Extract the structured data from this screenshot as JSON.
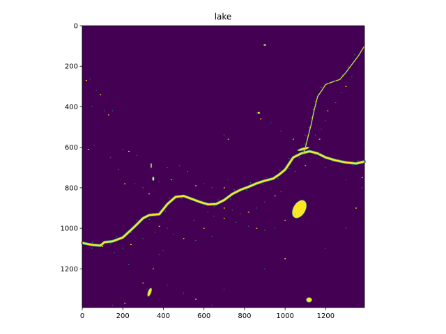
{
  "chart_data": {
    "type": "heatmap",
    "title": "lake",
    "xlabel": "",
    "ylabel": "",
    "xlim": [
      0,
      1391
    ],
    "ylim": [
      1391,
      0
    ],
    "x_ticks": [
      0,
      200,
      400,
      600,
      800,
      1000,
      1200
    ],
    "y_ticks": [
      0,
      200,
      400,
      600,
      800,
      1000,
      1200
    ],
    "colormap": "viridis",
    "colors": {
      "background": "#440154",
      "water": "#fde725",
      "edge": "#21918c"
    },
    "river_main": [
      [
        0,
        1072
      ],
      [
        50,
        1082
      ],
      [
        90,
        1085
      ],
      [
        110,
        1068
      ],
      [
        150,
        1064
      ],
      [
        200,
        1045
      ],
      [
        260,
        990
      ],
      [
        300,
        950
      ],
      [
        330,
        935
      ],
      [
        380,
        930
      ],
      [
        420,
        880
      ],
      [
        460,
        845
      ],
      [
        500,
        840
      ],
      [
        540,
        855
      ],
      [
        580,
        870
      ],
      [
        620,
        882
      ],
      [
        660,
        880
      ],
      [
        700,
        860
      ],
      [
        740,
        830
      ],
      [
        780,
        810
      ],
      [
        820,
        795
      ],
      [
        860,
        778
      ],
      [
        900,
        765
      ],
      [
        940,
        755
      ],
      [
        970,
        735
      ],
      [
        1000,
        710
      ],
      [
        1020,
        680
      ],
      [
        1040,
        650
      ],
      [
        1080,
        630
      ],
      [
        1120,
        620
      ],
      [
        1160,
        630
      ],
      [
        1200,
        650
      ],
      [
        1250,
        665
      ],
      [
        1300,
        675
      ],
      [
        1350,
        680
      ],
      [
        1391,
        670
      ]
    ],
    "river_branch": [
      [
        1391,
        100
      ],
      [
        1360,
        150
      ],
      [
        1330,
        190
      ],
      [
        1300,
        230
      ],
      [
        1270,
        265
      ],
      [
        1240,
        275
      ],
      [
        1200,
        290
      ],
      [
        1180,
        320
      ],
      [
        1160,
        350
      ],
      [
        1150,
        390
      ],
      [
        1140,
        430
      ],
      [
        1130,
        480
      ],
      [
        1120,
        520
      ],
      [
        1110,
        560
      ],
      [
        1100,
        600
      ],
      [
        1090,
        630
      ]
    ],
    "blobs": [
      {
        "cx": 1070,
        "cy": 905,
        "rx": 30,
        "ry": 48,
        "rot": 30
      },
      {
        "cx": 332,
        "cy": 1315,
        "rx": 8,
        "ry": 22,
        "rot": 20
      },
      {
        "cx": 1118,
        "cy": 1353,
        "rx": 14,
        "ry": 12,
        "rot": 0
      },
      {
        "cx": 1090,
        "cy": 608,
        "rx": 30,
        "ry": 6,
        "rot": -15
      },
      {
        "cx": 870,
        "cy": 430,
        "rx": 6,
        "ry": 5,
        "rot": 0
      },
      {
        "cx": 900,
        "cy": 95,
        "rx": 6,
        "ry": 4,
        "rot": 0
      },
      {
        "cx": 350,
        "cy": 755,
        "rx": 5,
        "ry": 10,
        "rot": 0
      },
      {
        "cx": 340,
        "cy": 690,
        "rx": 3,
        "ry": 12,
        "rot": 0
      }
    ],
    "specks": [
      [
        20,
        270
      ],
      [
        40,
        262
      ],
      [
        70,
        320
      ],
      [
        90,
        340
      ],
      [
        50,
        400
      ],
      [
        110,
        420
      ],
      [
        130,
        440
      ],
      [
        150,
        420
      ],
      [
        60,
        590
      ],
      [
        30,
        610
      ],
      [
        140,
        650
      ],
      [
        200,
        610
      ],
      [
        230,
        620
      ],
      [
        270,
        640
      ],
      [
        180,
        710
      ],
      [
        210,
        780
      ],
      [
        260,
        780
      ],
      [
        300,
        800
      ],
      [
        330,
        830
      ],
      [
        380,
        770
      ],
      [
        420,
        700
      ],
      [
        440,
        760
      ],
      [
        480,
        690
      ],
      [
        520,
        720
      ],
      [
        560,
        790
      ],
      [
        600,
        780
      ],
      [
        640,
        800
      ],
      [
        700,
        800
      ],
      [
        720,
        760
      ],
      [
        700,
        540
      ],
      [
        720,
        560
      ],
      [
        620,
        920
      ],
      [
        650,
        940
      ],
      [
        700,
        950
      ],
      [
        760,
        970
      ],
      [
        820,
        990
      ],
      [
        860,
        1000
      ],
      [
        900,
        1010
      ],
      [
        950,
        1000
      ],
      [
        1000,
        960
      ],
      [
        1050,
        930
      ],
      [
        550,
        960
      ],
      [
        600,
        1000
      ],
      [
        640,
        1040
      ],
      [
        560,
        1060
      ],
      [
        500,
        1050
      ],
      [
        450,
        1030
      ],
      [
        420,
        1000
      ],
      [
        380,
        990
      ],
      [
        360,
        1020
      ],
      [
        300,
        1050
      ],
      [
        240,
        1080
      ],
      [
        200,
        1100
      ],
      [
        160,
        1120
      ],
      [
        100,
        1090
      ],
      [
        50,
        1100
      ],
      [
        230,
        1180
      ],
      [
        300,
        1270
      ],
      [
        320,
        1300
      ],
      [
        150,
        1380
      ],
      [
        210,
        1370
      ],
      [
        640,
        1380
      ],
      [
        860,
        430
      ],
      [
        880,
        460
      ],
      [
        930,
        480
      ],
      [
        980,
        520
      ],
      [
        1040,
        560
      ],
      [
        1100,
        540
      ],
      [
        1150,
        540
      ],
      [
        1170,
        560
      ],
      [
        1180,
        510
      ],
      [
        1200,
        470
      ],
      [
        1210,
        420
      ],
      [
        1250,
        380
      ],
      [
        1280,
        330
      ],
      [
        1300,
        300
      ],
      [
        1330,
        250
      ],
      [
        1390,
        590
      ],
      [
        1380,
        750
      ],
      [
        1300,
        760
      ],
      [
        1200,
        700
      ],
      [
        1100,
        690
      ],
      [
        1050,
        720
      ],
      [
        980,
        820
      ],
      [
        950,
        840
      ],
      [
        900,
        870
      ],
      [
        860,
        900
      ],
      [
        820,
        920
      ],
      [
        780,
        930
      ],
      [
        740,
        910
      ],
      [
        700,
        900
      ],
      [
        400,
        1110
      ],
      [
        380,
        1130
      ],
      [
        350,
        1200
      ],
      [
        420,
        1280
      ],
      [
        500,
        1320
      ],
      [
        560,
        1350
      ],
      [
        700,
        1300
      ],
      [
        900,
        1200
      ],
      [
        1000,
        1150
      ],
      [
        1200,
        1100
      ],
      [
        1300,
        1000
      ],
      [
        1350,
        900
      ],
      [
        1380,
        800
      ]
    ],
    "branch_points": [
      [
        1350,
        140
      ],
      [
        1320,
        200
      ],
      [
        1290,
        240
      ],
      [
        1255,
        268
      ],
      [
        1220,
        280
      ],
      [
        1185,
        300
      ],
      [
        1170,
        335
      ],
      [
        1155,
        370
      ],
      [
        1145,
        410
      ],
      [
        1135,
        450
      ],
      [
        1125,
        500
      ],
      [
        1115,
        540
      ],
      [
        1105,
        580
      ]
    ],
    "main_points": [
      [
        60,
        1080
      ],
      [
        130,
        1066
      ],
      [
        180,
        1050
      ],
      [
        230,
        1010
      ],
      [
        280,
        970
      ],
      [
        320,
        945
      ],
      [
        360,
        935
      ],
      [
        400,
        905
      ],
      [
        440,
        862
      ],
      [
        480,
        842
      ],
      [
        520,
        848
      ],
      [
        560,
        862
      ],
      [
        600,
        876
      ],
      [
        640,
        882
      ],
      [
        680,
        870
      ],
      [
        720,
        845
      ],
      [
        760,
        820
      ],
      [
        800,
        802
      ],
      [
        840,
        786
      ],
      [
        880,
        772
      ],
      [
        920,
        760
      ],
      [
        955,
        745
      ],
      [
        985,
        722
      ],
      [
        1010,
        695
      ],
      [
        1030,
        665
      ],
      [
        1060,
        640
      ],
      [
        1100,
        625
      ],
      [
        1140,
        625
      ],
      [
        1180,
        640
      ],
      [
        1225,
        658
      ],
      [
        1275,
        670
      ],
      [
        1325,
        678
      ],
      [
        1370,
        676
      ]
    ]
  }
}
